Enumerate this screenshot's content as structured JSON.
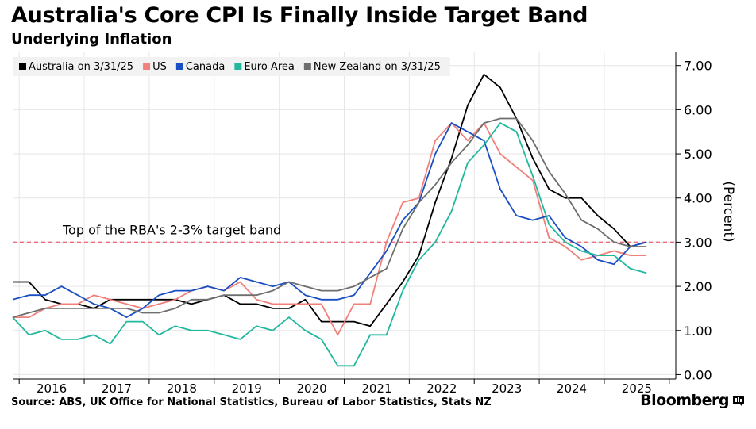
{
  "title": "Australia's Core CPI Is Finally Inside Target Band",
  "subtitle": "Underlying Inflation",
  "source": "Source: ABS, UK Office for National Statistics, Bureau of Labor Statistics, Stats NZ",
  "brand": "Bloomberg",
  "chart_data": {
    "type": "line",
    "ylabel": "(Percent)",
    "ylim": [
      -0.1,
      7.3
    ],
    "xlim": [
      2015.4,
      2025.6
    ],
    "yticks": [
      0,
      1,
      2,
      3,
      4,
      5,
      6,
      7
    ],
    "ytick_labels": [
      "0.00",
      "1.00",
      "2.00",
      "3.00",
      "4.00",
      "5.00",
      "6.00",
      "7.00"
    ],
    "xtick_labels": [
      "2016",
      "2017",
      "2018",
      "2019",
      "2020",
      "2021",
      "2022",
      "2023",
      "2024",
      "2025"
    ],
    "grid": true,
    "legend_placement": "top-left",
    "reference_line": {
      "value": 3.0,
      "label": "Top of the RBA's 2-3% target band",
      "color": "#e8707c"
    },
    "series": [
      {
        "name": "Australia on 3/31/25",
        "color": "#000000",
        "x": [
          2015.4,
          2015.65,
          2015.9,
          2016.15,
          2016.4,
          2016.65,
          2016.9,
          2017.15,
          2017.4,
          2017.65,
          2017.9,
          2018.15,
          2018.4,
          2018.65,
          2018.9,
          2019.15,
          2019.4,
          2019.65,
          2019.9,
          2020.15,
          2020.4,
          2020.65,
          2020.9,
          2021.15,
          2021.4,
          2021.65,
          2021.9,
          2022.15,
          2022.4,
          2022.65,
          2022.9,
          2023.15,
          2023.4,
          2023.65,
          2023.9,
          2024.15,
          2024.4,
          2024.65,
          2024.9,
          2025.15
        ],
        "values": [
          2.1,
          2.1,
          1.7,
          1.6,
          1.6,
          1.5,
          1.7,
          1.7,
          1.7,
          1.7,
          1.7,
          1.6,
          1.7,
          1.8,
          1.6,
          1.6,
          1.5,
          1.5,
          1.7,
          1.2,
          1.2,
          1.2,
          1.1,
          1.6,
          2.1,
          2.7,
          3.9,
          4.9,
          6.1,
          6.8,
          6.5,
          5.8,
          4.9,
          4.2,
          4.0,
          4.0,
          3.6,
          3.3,
          2.9,
          3.0
        ]
      },
      {
        "name": "US",
        "color": "#f0807a",
        "x": [
          2015.4,
          2015.65,
          2015.9,
          2016.15,
          2016.4,
          2016.65,
          2016.9,
          2017.15,
          2017.4,
          2017.65,
          2017.9,
          2018.15,
          2018.4,
          2018.65,
          2018.9,
          2019.15,
          2019.4,
          2019.65,
          2019.9,
          2020.15,
          2020.4,
          2020.65,
          2020.9,
          2021.15,
          2021.4,
          2021.65,
          2021.9,
          2022.15,
          2022.4,
          2022.65,
          2022.9,
          2023.15,
          2023.4,
          2023.65,
          2023.9,
          2024.15,
          2024.4,
          2024.65,
          2024.9,
          2025.15
        ],
        "values": [
          1.3,
          1.3,
          1.5,
          1.6,
          1.6,
          1.8,
          1.7,
          1.6,
          1.5,
          1.6,
          1.7,
          1.9,
          2.0,
          1.9,
          2.1,
          1.7,
          1.6,
          1.6,
          1.6,
          1.6,
          0.9,
          1.6,
          1.6,
          3.0,
          3.9,
          4.0,
          5.3,
          5.7,
          5.3,
          5.7,
          5.0,
          4.7,
          4.4,
          3.1,
          2.9,
          2.6,
          2.7,
          2.8,
          2.7,
          2.7
        ]
      },
      {
        "name": "Canada",
        "color": "#1a4fc4",
        "x": [
          2015.4,
          2015.65,
          2015.9,
          2016.15,
          2016.4,
          2016.65,
          2016.9,
          2017.15,
          2017.4,
          2017.65,
          2017.9,
          2018.15,
          2018.4,
          2018.65,
          2018.9,
          2019.15,
          2019.4,
          2019.65,
          2019.9,
          2020.15,
          2020.4,
          2020.65,
          2020.9,
          2021.15,
          2021.4,
          2021.65,
          2021.9,
          2022.15,
          2022.4,
          2022.65,
          2022.9,
          2023.15,
          2023.4,
          2023.65,
          2023.9,
          2024.15,
          2024.4,
          2024.65,
          2024.9,
          2025.15
        ],
        "values": [
          1.7,
          1.8,
          1.8,
          2.0,
          1.8,
          1.6,
          1.5,
          1.3,
          1.5,
          1.8,
          1.9,
          1.9,
          2.0,
          1.9,
          2.2,
          2.1,
          2.0,
          2.1,
          1.8,
          1.7,
          1.7,
          1.8,
          2.3,
          2.8,
          3.5,
          3.9,
          5.0,
          5.7,
          5.5,
          5.3,
          4.2,
          3.6,
          3.5,
          3.6,
          3.1,
          2.9,
          2.6,
          2.5,
          2.9,
          3.0
        ]
      },
      {
        "name": "Euro Area",
        "color": "#21b89e",
        "x": [
          2015.4,
          2015.65,
          2015.9,
          2016.15,
          2016.4,
          2016.65,
          2016.9,
          2017.15,
          2017.4,
          2017.65,
          2017.9,
          2018.15,
          2018.4,
          2018.65,
          2018.9,
          2019.15,
          2019.4,
          2019.65,
          2019.9,
          2020.15,
          2020.4,
          2020.65,
          2020.9,
          2021.15,
          2021.4,
          2021.65,
          2021.9,
          2022.15,
          2022.4,
          2022.65,
          2022.9,
          2023.15,
          2023.4,
          2023.65,
          2023.9,
          2024.15,
          2024.4,
          2024.65,
          2024.9,
          2025.15
        ],
        "values": [
          1.3,
          0.9,
          1.0,
          0.8,
          0.8,
          0.9,
          0.7,
          1.2,
          1.2,
          0.9,
          1.1,
          1.0,
          1.0,
          0.9,
          0.8,
          1.1,
          1.0,
          1.3,
          1.0,
          0.8,
          0.2,
          0.2,
          0.9,
          0.9,
          1.9,
          2.6,
          3.0,
          3.7,
          4.8,
          5.2,
          5.7,
          5.5,
          4.5,
          3.4,
          3.0,
          2.8,
          2.7,
          2.7,
          2.4,
          2.3
        ]
      },
      {
        "name": "New Zealand on 3/31/25",
        "color": "#6e6e6e",
        "x": [
          2015.4,
          2015.65,
          2015.9,
          2016.15,
          2016.4,
          2016.65,
          2016.9,
          2017.15,
          2017.4,
          2017.65,
          2017.9,
          2018.15,
          2018.4,
          2018.65,
          2018.9,
          2019.15,
          2019.4,
          2019.65,
          2019.9,
          2020.15,
          2020.4,
          2020.65,
          2020.9,
          2021.15,
          2021.4,
          2021.65,
          2021.9,
          2022.15,
          2022.4,
          2022.65,
          2022.9,
          2023.15,
          2023.4,
          2023.65,
          2023.9,
          2024.15,
          2024.4,
          2024.65,
          2024.9,
          2025.15
        ],
        "values": [
          1.3,
          1.4,
          1.5,
          1.5,
          1.5,
          1.5,
          1.5,
          1.5,
          1.4,
          1.4,
          1.5,
          1.7,
          1.7,
          1.8,
          1.8,
          1.8,
          1.9,
          2.1,
          2.0,
          1.9,
          1.9,
          2.0,
          2.2,
          2.4,
          3.3,
          3.9,
          4.3,
          4.8,
          5.2,
          5.7,
          5.8,
          5.8,
          5.3,
          4.6,
          4.1,
          3.5,
          3.3,
          3.0,
          2.9,
          2.9
        ]
      }
    ]
  }
}
